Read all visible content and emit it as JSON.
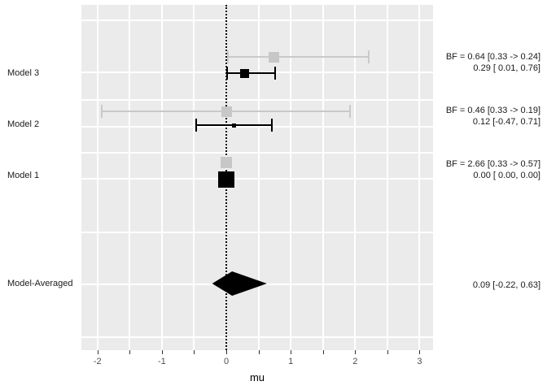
{
  "chart_data": {
    "type": "forest",
    "title": "",
    "xlabel": "mu",
    "x_axis": {
      "min": -2.25,
      "max": 3.21,
      "ticks": [
        -2,
        -1,
        0,
        1,
        2,
        3
      ],
      "minor_tick_step": 0.5
    },
    "reference_line_x": 0,
    "grid": "on",
    "models": [
      {
        "label": "Model 3",
        "prior": {
          "estimate": 0.74,
          "ci": [
            0.03,
            2.21
          ]
        },
        "posterior": {
          "estimate": 0.29,
          "ci": [
            0.01,
            0.76
          ]
        },
        "annotation_line1": "BF = 0.64 [0.33 -> 0.24]",
        "annotation_line2": "0.29 [ 0.01, 0.76]"
      },
      {
        "label": "Model 2",
        "prior": {
          "estimate": 0.0,
          "ci": [
            -1.94,
            1.92
          ]
        },
        "posterior": {
          "estimate": 0.12,
          "ci": [
            -0.47,
            0.71
          ]
        },
        "annotation_line1": "BF = 0.46 [0.33 -> 0.19]",
        "annotation_line2": "0.12 [-0.47, 0.71]"
      },
      {
        "label": "Model 1",
        "prior": {
          "estimate": 0.0,
          "ci": [
            0.0,
            0.0
          ]
        },
        "posterior": {
          "estimate": 0.0,
          "ci": [
            0.0,
            0.0
          ]
        },
        "annotation_line1": "BF = 2.66 [0.33 -> 0.57]",
        "annotation_line2": "0.00 [ 0.00, 0.00]"
      }
    ],
    "model_averaged": {
      "label": "Model-Averaged",
      "estimate": 0.09,
      "ci": [
        -0.22,
        0.63
      ],
      "annotation": "0.09 [-0.22, 0.63]"
    }
  },
  "colors": {
    "panel_bg": "#EBEBEB",
    "grid": "#FFFFFF",
    "prior_marker": "#C7C7C7",
    "prior_line": "#C9C9C9",
    "posterior": "#000000",
    "tick_text": "#4D4D4D",
    "label_text": "#1A1A1A"
  }
}
